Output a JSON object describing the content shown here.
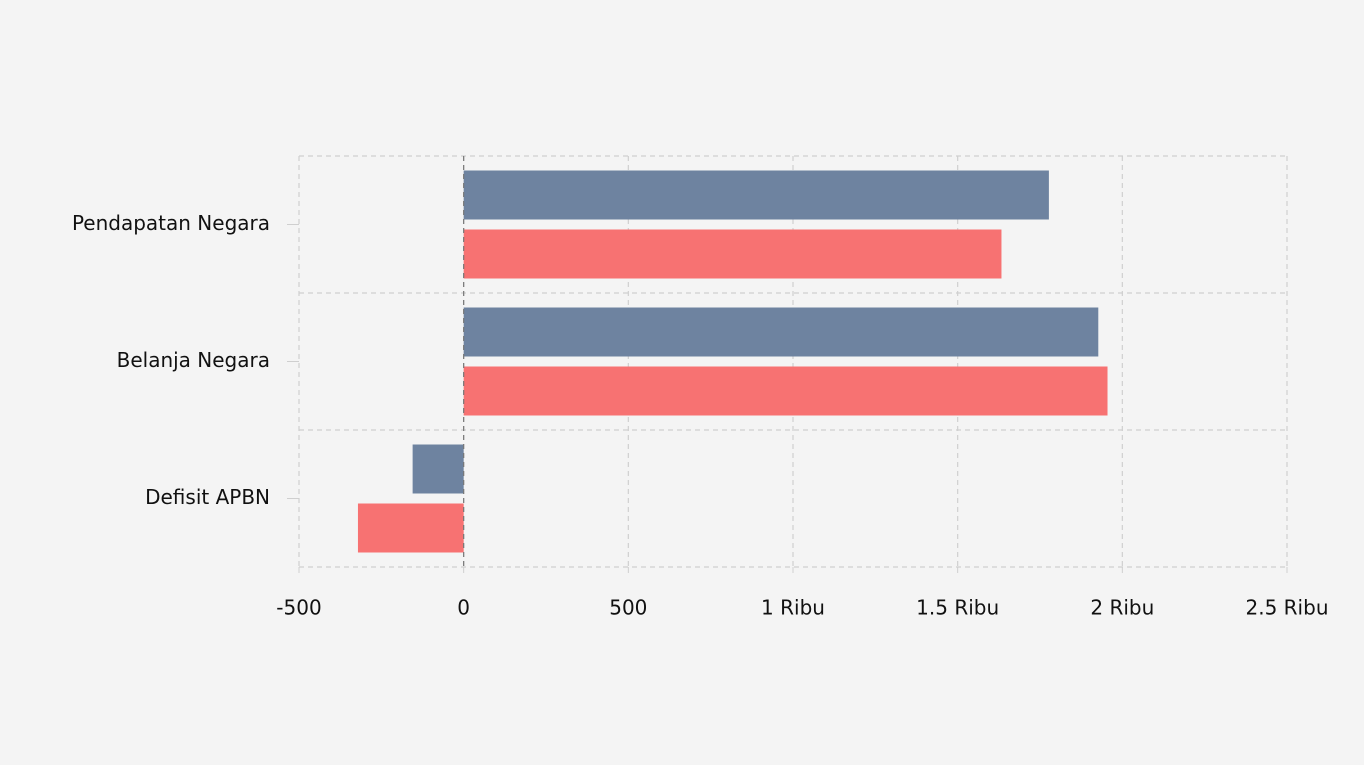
{
  "chart_data": {
    "type": "bar",
    "orientation": "horizontal",
    "categories": [
      "Pendapatan Negara",
      "Belanja Negara",
      "Defisit APBN"
    ],
    "series": [
      {
        "color": "#6e83a0",
        "values": [
          1777,
          1927,
          -155
        ]
      },
      {
        "color": "#f77272",
        "values": [
          1633,
          1955,
          -321
        ]
      }
    ],
    "xlim": [
      -500,
      2500
    ],
    "xticks": [
      -500,
      0,
      500,
      {
        "value": 1000,
        "label": "1 Ribu"
      },
      {
        "value": 1500,
        "label": "1.5 Ribu"
      },
      {
        "value": 2000,
        "label": "2 Ribu"
      },
      {
        "value": 2500,
        "label": "2.5 Ribu"
      }
    ],
    "grid": true
  }
}
